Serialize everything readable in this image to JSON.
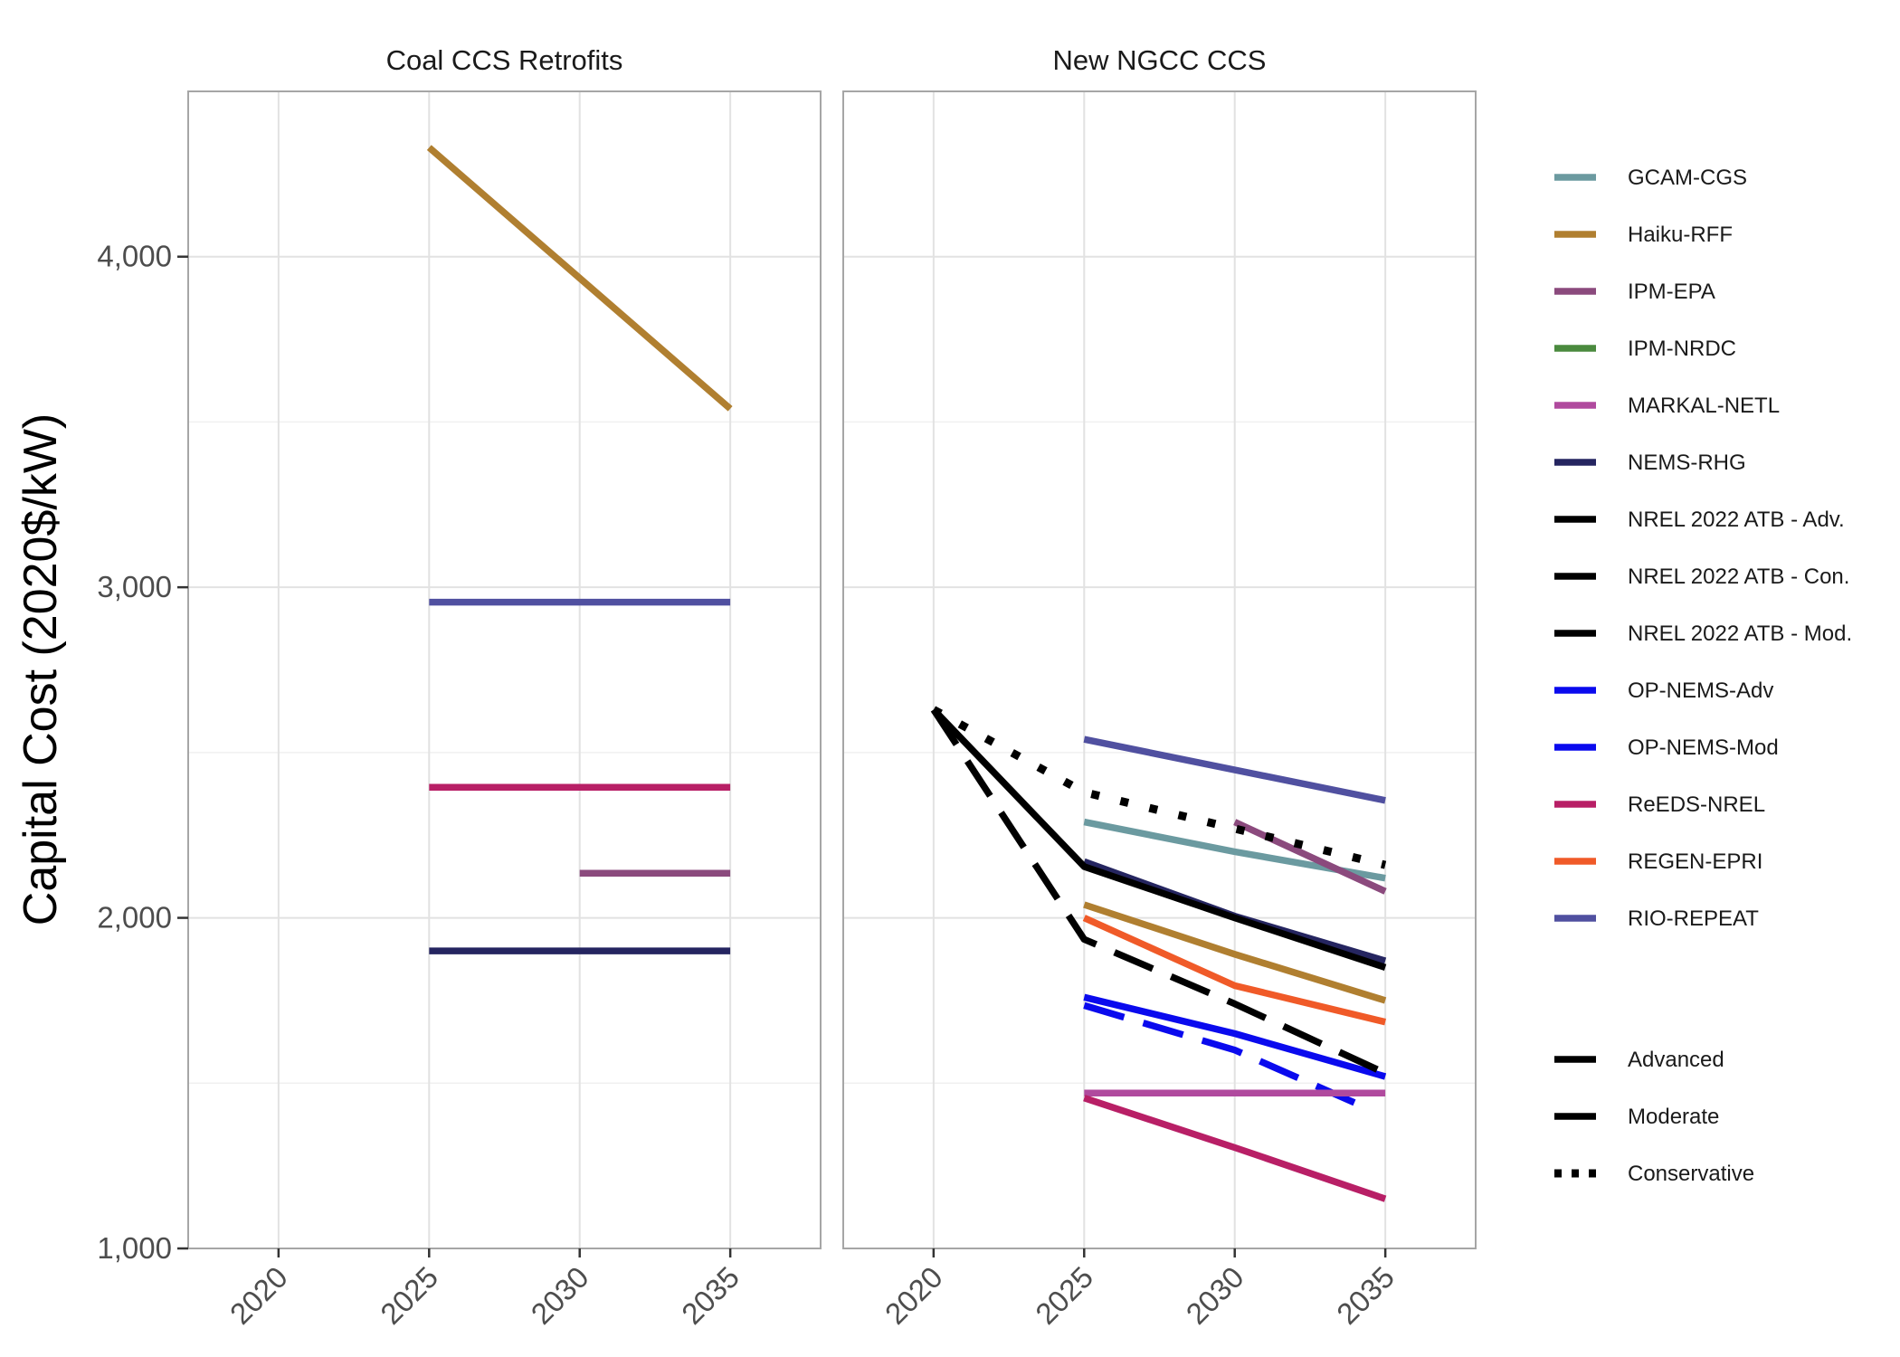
{
  "chart_data": {
    "type": "line",
    "ylabel": "Capital Cost (2020$/kW)",
    "ylim": [
      1000,
      4500
    ],
    "yticks": [
      1000,
      2000,
      3000,
      4000
    ],
    "ytick_labels": [
      "1,000",
      "2,000",
      "3,000",
      "4,000"
    ],
    "xlim": [
      2017,
      2038
    ],
    "xticks": [
      2020,
      2025,
      2030,
      2035
    ],
    "xtick_labels": [
      "2020",
      "2025",
      "2030",
      "2035"
    ],
    "grid": true,
    "legend_position": "right",
    "colors": {
      "GCAM-CGS": "#6b9aa0",
      "Haiku-RFF": "#b07f30",
      "IPM-EPA": "#8b4a7d",
      "IPM-NRDC": "#4a8a3e",
      "MARKAL-NETL": "#b04a9e",
      "NEMS-RHG": "#252560",
      "NREL 2022 ATB - Adv.": "#000000",
      "NREL 2022 ATB - Con.": "#000000",
      "NREL 2022 ATB - Mod.": "#000000",
      "OP-NEMS-Adv": "#0a0aee",
      "OP-NEMS-Mod": "#0a0aee",
      "ReEDS-NREL": "#b81f66",
      "REGEN-EPRI": "#f05a28",
      "RIO-REPEAT": "#5050a0"
    },
    "legend_models": [
      "GCAM-CGS",
      "Haiku-RFF",
      "IPM-EPA",
      "IPM-NRDC",
      "MARKAL-NETL",
      "NEMS-RHG",
      "NREL 2022 ATB - Adv.",
      "NREL 2022 ATB - Con.",
      "NREL 2022 ATB - Mod.",
      "OP-NEMS-Adv",
      "OP-NEMS-Mod",
      "ReEDS-NREL",
      "REGEN-EPRI",
      "RIO-REPEAT"
    ],
    "legend_linetypes": [
      {
        "label": "Advanced",
        "style": "solid"
      },
      {
        "label": "Moderate",
        "style": "solid"
      },
      {
        "label": "Conservative",
        "style": "dotted"
      }
    ],
    "facets": [
      {
        "title": "Coal CCS Retrofits",
        "series": [
          {
            "model": "Haiku-RFF",
            "style": "solid",
            "x": [
              2025,
              2035
            ],
            "y": [
              4330,
              3540
            ]
          },
          {
            "model": "RIO-REPEAT",
            "style": "solid",
            "x": [
              2025,
              2035
            ],
            "y": [
              2955,
              2955
            ]
          },
          {
            "model": "ReEDS-NREL",
            "style": "solid",
            "x": [
              2025,
              2035
            ],
            "y": [
              2395,
              2395
            ]
          },
          {
            "model": "IPM-EPA",
            "style": "solid",
            "x": [
              2030,
              2035
            ],
            "y": [
              2135,
              2135
            ]
          },
          {
            "model": "NEMS-RHG",
            "style": "solid",
            "x": [
              2025,
              2035
            ],
            "y": [
              1900,
              1900
            ]
          }
        ]
      },
      {
        "title": "New NGCC CCS",
        "series": [
          {
            "model": "RIO-REPEAT",
            "style": "solid",
            "x": [
              2025,
              2035
            ],
            "y": [
              2540,
              2355
            ]
          },
          {
            "model": "GCAM-CGS",
            "style": "solid",
            "x": [
              2025,
              2030,
              2035
            ],
            "y": [
              2290,
              2200,
              2120
            ]
          },
          {
            "model": "IPM-EPA",
            "style": "solid",
            "x": [
              2030,
              2035
            ],
            "y": [
              2290,
              2080
            ]
          },
          {
            "model": "NEMS-RHG",
            "style": "solid",
            "x": [
              2025,
              2030,
              2035
            ],
            "y": [
              2170,
              2005,
              1870
            ]
          },
          {
            "model": "Haiku-RFF",
            "style": "solid",
            "x": [
              2025,
              2030,
              2035
            ],
            "y": [
              2040,
              1890,
              1750
            ]
          },
          {
            "model": "REGEN-EPRI",
            "style": "solid",
            "x": [
              2025,
              2030,
              2035
            ],
            "y": [
              2000,
              1795,
              1685
            ]
          },
          {
            "model": "OP-NEMS-Adv",
            "style": "solid",
            "x": [
              2025,
              2030,
              2035
            ],
            "y": [
              1760,
              1650,
              1520
            ]
          },
          {
            "model": "OP-NEMS-Mod",
            "style": "dashed",
            "x": [
              2025,
              2030,
              2034
            ],
            "y": [
              1735,
              1600,
              1440
            ]
          },
          {
            "model": "MARKAL-NETL",
            "style": "solid",
            "x": [
              2025,
              2035
            ],
            "y": [
              1470,
              1470
            ]
          },
          {
            "model": "ReEDS-NREL",
            "style": "solid",
            "x": [
              2025,
              2030,
              2035
            ],
            "y": [
              1455,
              1305,
              1150
            ]
          },
          {
            "model": "NREL 2022 ATB - Con.",
            "style": "dotted",
            "x": [
              2020,
              2025,
              2030,
              2035
            ],
            "y": [
              2630,
              2380,
              2270,
              2160
            ]
          },
          {
            "model": "NREL 2022 ATB - Mod.",
            "style": "solid",
            "x": [
              2020,
              2025,
              2030,
              2035
            ],
            "y": [
              2630,
              2155,
              2000,
              1850
            ]
          },
          {
            "model": "NREL 2022 ATB - Adv.",
            "style": "dashed",
            "x": [
              2020,
              2025,
              2030,
              2035
            ],
            "y": [
              2630,
              1935,
              1740,
              1530
            ]
          }
        ]
      }
    ]
  }
}
